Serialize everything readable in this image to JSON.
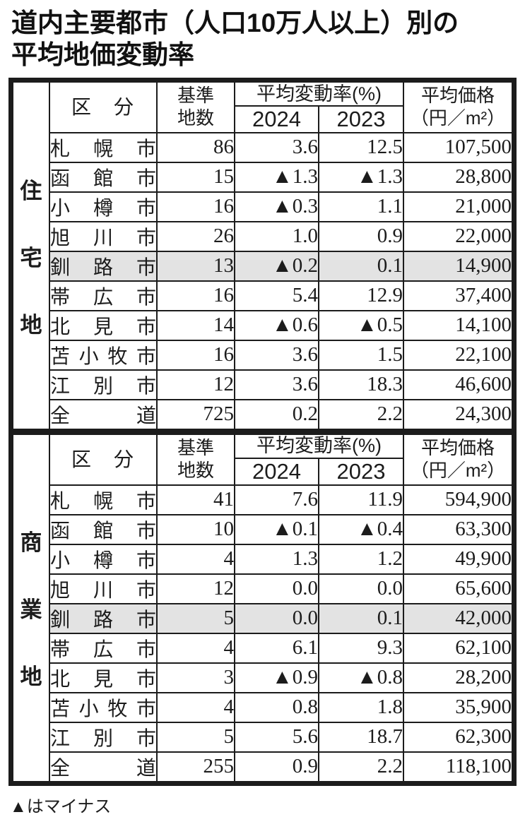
{
  "title": {
    "line1": "道内主要都市（人口10万人以上）別の",
    "line2": "平均地価変動率"
  },
  "footnote": "▲はマイナス",
  "colors": {
    "text": "#1c1c1c",
    "border": "#1c1c1c",
    "highlight_row_background": "#e3e3e3",
    "page_background": "#ffffff"
  },
  "header": {
    "category": "区　分",
    "site_count_line1": "基準",
    "site_count_line2": "地数",
    "change_rate": "平均変動率(%)",
    "year_2024": "2024",
    "year_2023": "2023",
    "price_line1": "平均価格",
    "price_line2": "（円／m²）"
  },
  "chart_data": [
    {
      "type": "table",
      "section_label": "住宅地",
      "columns": [
        "区分",
        "基準地数",
        "平均変動率(%) 2024",
        "平均変動率(%) 2023",
        "平均価格（円／m²）"
      ],
      "negative_marker": "▲",
      "rows": [
        {
          "city": "札幌市",
          "sites": "86",
          "rate_2024": "3.6",
          "rate_2023": "12.5",
          "price": "107,500",
          "highlight": false
        },
        {
          "city": "函館市",
          "sites": "15",
          "rate_2024": "▲1.3",
          "rate_2023": "▲1.3",
          "price": "28,800",
          "highlight": false
        },
        {
          "city": "小樽市",
          "sites": "16",
          "rate_2024": "▲0.3",
          "rate_2023": "1.1",
          "price": "21,000",
          "highlight": false
        },
        {
          "city": "旭川市",
          "sites": "26",
          "rate_2024": "1.0",
          "rate_2023": "0.9",
          "price": "22,000",
          "highlight": false
        },
        {
          "city": "釧路市",
          "sites": "13",
          "rate_2024": "▲0.2",
          "rate_2023": "0.1",
          "price": "14,900",
          "highlight": true
        },
        {
          "city": "帯広市",
          "sites": "16",
          "rate_2024": "5.4",
          "rate_2023": "12.9",
          "price": "37,400",
          "highlight": false
        },
        {
          "city": "北見市",
          "sites": "14",
          "rate_2024": "▲0.6",
          "rate_2023": "▲0.5",
          "price": "14,100",
          "highlight": false
        },
        {
          "city": "苫小牧市",
          "sites": "16",
          "rate_2024": "3.6",
          "rate_2023": "1.5",
          "price": "22,100",
          "highlight": false
        },
        {
          "city": "江別市",
          "sites": "12",
          "rate_2024": "3.6",
          "rate_2023": "18.3",
          "price": "46,600",
          "highlight": false
        },
        {
          "city": "全道",
          "sites": "725",
          "rate_2024": "0.2",
          "rate_2023": "2.2",
          "price": "24,300",
          "highlight": false
        }
      ]
    },
    {
      "type": "table",
      "section_label": "商業地",
      "columns": [
        "区分",
        "基準地数",
        "平均変動率(%) 2024",
        "平均変動率(%) 2023",
        "平均価格（円／m²）"
      ],
      "negative_marker": "▲",
      "rows": [
        {
          "city": "札幌市",
          "sites": "41",
          "rate_2024": "7.6",
          "rate_2023": "11.9",
          "price": "594,900",
          "highlight": false
        },
        {
          "city": "函館市",
          "sites": "10",
          "rate_2024": "▲0.1",
          "rate_2023": "▲0.4",
          "price": "63,300",
          "highlight": false
        },
        {
          "city": "小樽市",
          "sites": "4",
          "rate_2024": "1.3",
          "rate_2023": "1.2",
          "price": "49,900",
          "highlight": false
        },
        {
          "city": "旭川市",
          "sites": "12",
          "rate_2024": "0.0",
          "rate_2023": "0.0",
          "price": "65,600",
          "highlight": false
        },
        {
          "city": "釧路市",
          "sites": "5",
          "rate_2024": "0.0",
          "rate_2023": "0.1",
          "price": "42,000",
          "highlight": true
        },
        {
          "city": "帯広市",
          "sites": "4",
          "rate_2024": "6.1",
          "rate_2023": "9.3",
          "price": "62,100",
          "highlight": false
        },
        {
          "city": "北見市",
          "sites": "3",
          "rate_2024": "▲0.9",
          "rate_2023": "▲0.8",
          "price": "28,200",
          "highlight": false
        },
        {
          "city": "苫小牧市",
          "sites": "4",
          "rate_2024": "0.8",
          "rate_2023": "1.8",
          "price": "35,900",
          "highlight": false
        },
        {
          "city": "江別市",
          "sites": "5",
          "rate_2024": "5.6",
          "rate_2023": "18.7",
          "price": "62,300",
          "highlight": false
        },
        {
          "city": "全道",
          "sites": "255",
          "rate_2024": "0.9",
          "rate_2023": "2.2",
          "price": "118,100",
          "highlight": false
        }
      ]
    }
  ]
}
